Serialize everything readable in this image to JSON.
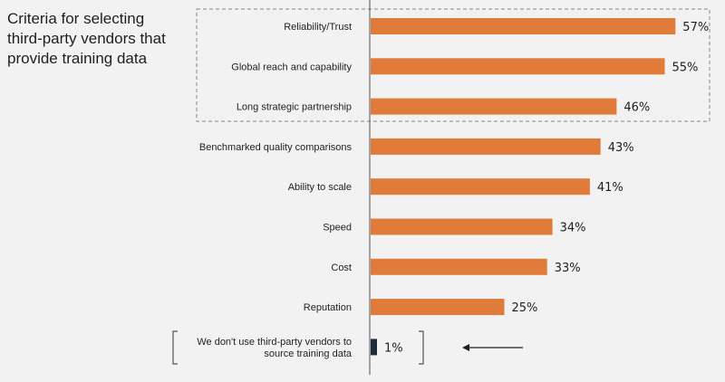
{
  "title": "Criteria for selecting\nthird-party vendors that\nprovide training data",
  "chart_data": {
    "type": "bar",
    "orientation": "horizontal",
    "title": "Criteria for selecting third-party vendors that provide training data",
    "xlabel": "",
    "ylabel": "",
    "xlim": [
      0,
      65
    ],
    "grid": false,
    "legend": "none",
    "unit": "%",
    "categories": [
      "Reliability/Trust",
      "Global reach and capability",
      "Long strategic partnership",
      "Benchmarked quality comparisons",
      "Ability to scale",
      "Speed",
      "Cost",
      "Reputation",
      "We don't use third-party vendors to\nsource training data"
    ],
    "values": [
      57,
      55,
      46,
      43,
      41,
      34,
      33,
      25,
      1
    ],
    "value_labels": [
      "57%",
      "55%",
      "46%",
      "43%",
      "41%",
      "34%",
      "33%",
      "25%",
      "1%"
    ],
    "highlight_box_top_n": 3,
    "colors": {
      "bar": "#e07b39",
      "bar_last": "#1c2a3a",
      "axis": "#555555",
      "box": "#888888",
      "text": "#1f1f1f"
    }
  }
}
